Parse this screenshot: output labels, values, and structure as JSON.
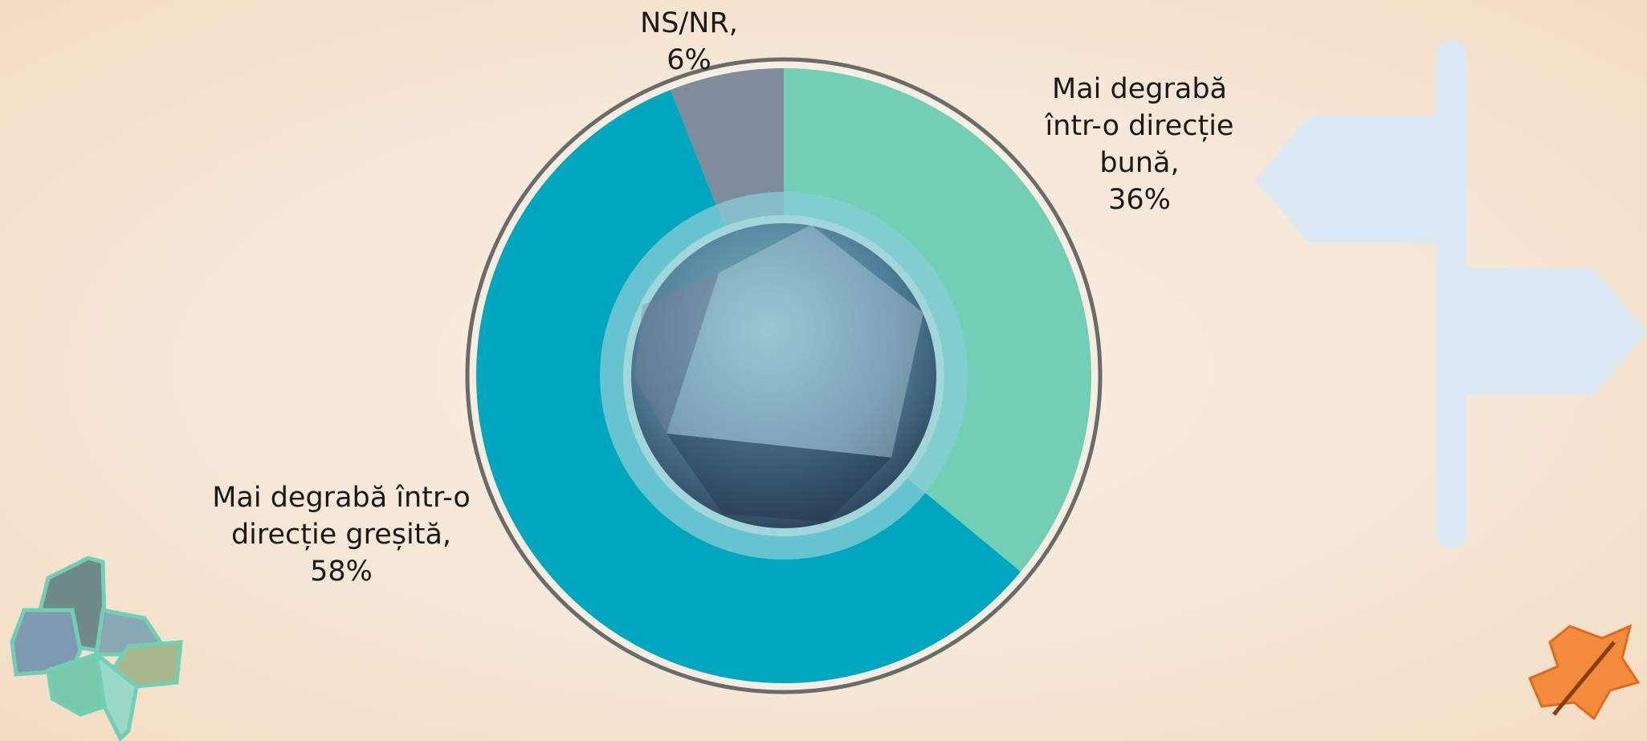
{
  "chart_data": {
    "type": "donut",
    "categories": [
      "Mai degrabă într-o direcție bună,",
      "Mai degrabă într-o direcție greșită,",
      "NS/NR,"
    ],
    "values": [
      36,
      58,
      6
    ],
    "value_labels": [
      "36%",
      "58%",
      "6%"
    ],
    "colors": [
      "#72cfb5",
      "#00a6bd",
      "#7f8c9c"
    ]
  }
}
